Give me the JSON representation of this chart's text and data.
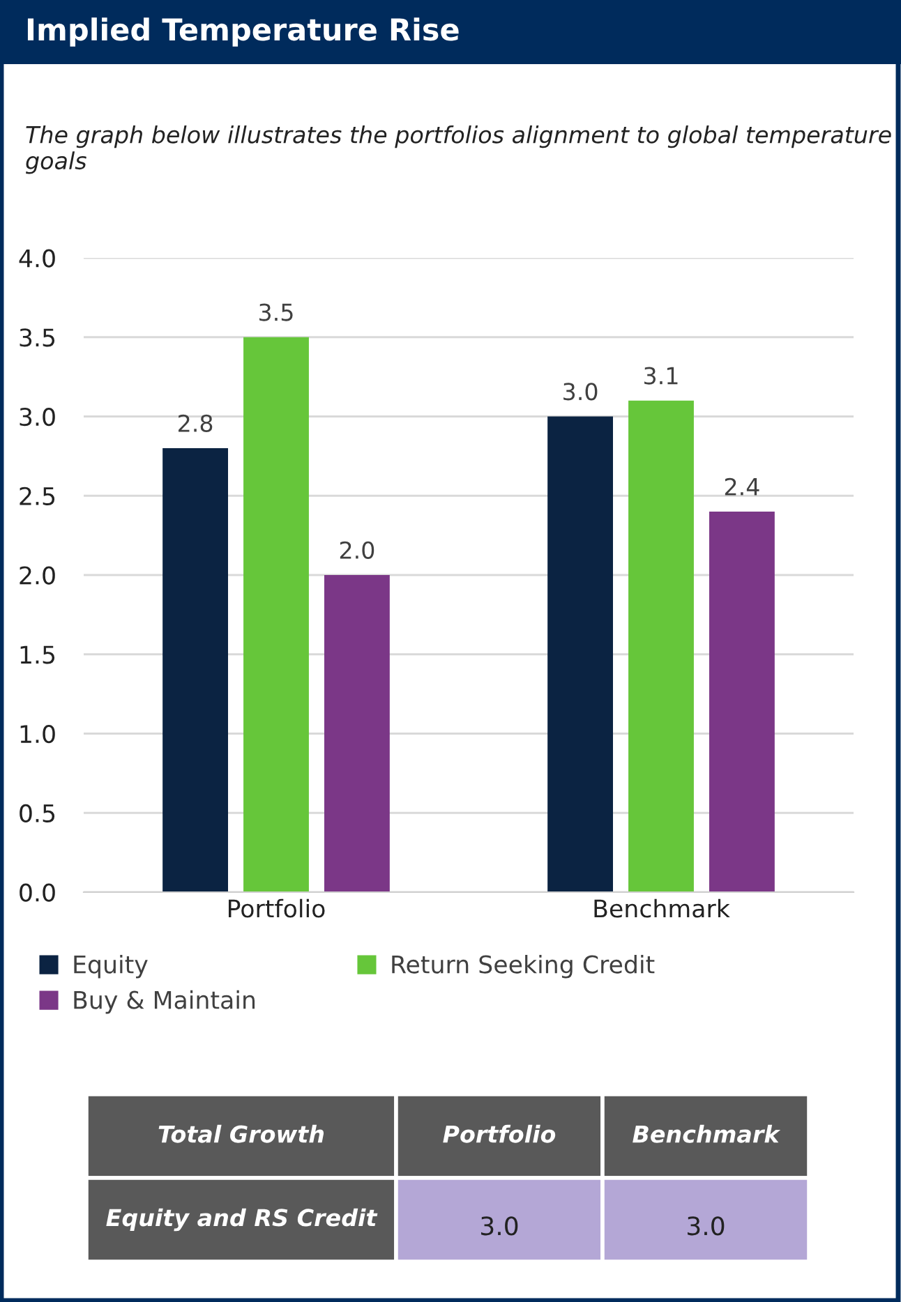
{
  "chart_data": [
    {
      "type": "bar",
      "title": "Implied Temperature Rise",
      "subtitle": "The graph below illustrates the portfolios alignment to global temperature goals",
      "categories": [
        "Portfolio",
        "Benchmark"
      ],
      "series": [
        {
          "name": "Equity",
          "color": "#0b2342",
          "values": [
            2.8,
            3.0
          ],
          "value_labels": [
            "2.8",
            "3.0"
          ]
        },
        {
          "name": "Return Seeking Credit",
          "color": "#66c63a",
          "values": [
            3.5,
            3.1
          ],
          "value_labels": [
            "3.5",
            "3.1"
          ]
        },
        {
          "name": "Buy & Maintain",
          "color": "#7b3787",
          "values": [
            2.0,
            2.4
          ],
          "value_labels": [
            "2.0",
            "2.4"
          ]
        }
      ],
      "ylim": [
        0,
        4
      ],
      "yticks": [
        {
          "value": 0,
          "label": "0.0"
        },
        {
          "value": 0.5,
          "label": "0.5"
        },
        {
          "value": 1,
          "label": "1.0"
        },
        {
          "value": 1.5,
          "label": "1.5"
        },
        {
          "value": 2,
          "label": "2.0"
        },
        {
          "value": 2.5,
          "label": "2.5"
        },
        {
          "value": 3,
          "label": "3.0"
        },
        {
          "value": 3.5,
          "label": "3.5"
        },
        {
          "value": 4,
          "label": "4.0"
        }
      ],
      "grid": "y",
      "legend": "bottom"
    },
    {
      "type": "other",
      "title": "Total Growth",
      "categories": [
        "Portfolio",
        "Benchmark"
      ],
      "y_categories": [
        "Equity and RS Credit"
      ],
      "cells": [
        [
          "3.0",
          "3.0"
        ]
      ],
      "color": "#b4a7d6"
    }
  ]
}
